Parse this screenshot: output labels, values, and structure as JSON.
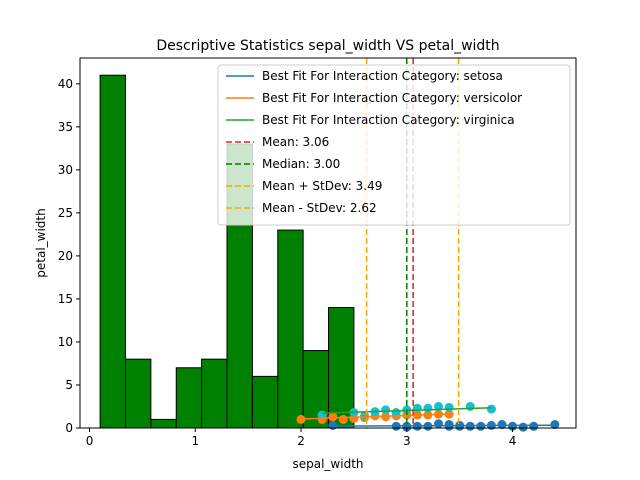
{
  "chart_data": {
    "type": "bar",
    "title": "Descriptive Statistics sepal_width VS petal_width",
    "xlabel": "sepal_width",
    "ylabel": "petal_width",
    "xlim": [
      -0.09,
      4.6
    ],
    "ylim": [
      0,
      43
    ],
    "xticks": [
      0,
      1,
      2,
      3,
      4
    ],
    "yticks": [
      0,
      5,
      10,
      15,
      20,
      25,
      30,
      35,
      40
    ],
    "histogram": {
      "color": "#008000",
      "edgecolor": "#000000",
      "bins": [
        {
          "x0": 0.1,
          "x1": 0.34,
          "count": 41
        },
        {
          "x0": 0.34,
          "x1": 0.58,
          "count": 8
        },
        {
          "x0": 0.58,
          "x1": 0.82,
          "count": 1
        },
        {
          "x0": 0.82,
          "x1": 1.06,
          "count": 7
        },
        {
          "x0": 1.06,
          "x1": 1.3,
          "count": 8
        },
        {
          "x0": 1.3,
          "x1": 1.54,
          "count": 33
        },
        {
          "x0": 1.54,
          "x1": 1.78,
          "count": 6
        },
        {
          "x0": 1.78,
          "x1": 2.02,
          "count": 23
        },
        {
          "x0": 2.02,
          "x1": 2.26,
          "count": 9
        },
        {
          "x0": 2.26,
          "x1": 2.5,
          "count": 14
        }
      ]
    },
    "scatter": [
      {
        "color": "#1f77b4",
        "points": [
          [
            2.3,
            0.3
          ],
          [
            2.9,
            0.2
          ],
          [
            3.0,
            0.1
          ],
          [
            3.0,
            0.2
          ],
          [
            3.1,
            0.2
          ],
          [
            3.2,
            0.2
          ],
          [
            3.3,
            0.5
          ],
          [
            3.4,
            0.2
          ],
          [
            3.4,
            0.4
          ],
          [
            3.5,
            0.2
          ],
          [
            3.5,
            0.3
          ],
          [
            3.6,
            0.2
          ],
          [
            3.7,
            0.2
          ],
          [
            3.8,
            0.3
          ],
          [
            3.9,
            0.4
          ],
          [
            4.0,
            0.2
          ],
          [
            4.1,
            0.1
          ],
          [
            4.2,
            0.2
          ],
          [
            4.4,
            0.4
          ]
        ]
      },
      {
        "color": "#ff7f0e",
        "points": [
          [
            2.0,
            1.0
          ],
          [
            2.2,
            1.0
          ],
          [
            2.3,
            1.3
          ],
          [
            2.4,
            1.0
          ],
          [
            2.5,
            1.1
          ],
          [
            2.6,
            1.2
          ],
          [
            2.7,
            1.4
          ],
          [
            2.8,
            1.3
          ],
          [
            2.9,
            1.4
          ],
          [
            3.0,
            1.5
          ],
          [
            3.1,
            1.5
          ],
          [
            3.2,
            1.5
          ],
          [
            3.3,
            1.6
          ],
          [
            3.4,
            1.6
          ]
        ]
      },
      {
        "color": "#17becf",
        "points": [
          [
            2.2,
            1.5
          ],
          [
            2.5,
            1.8
          ],
          [
            2.6,
            1.4
          ],
          [
            2.7,
            1.9
          ],
          [
            2.8,
            2.1
          ],
          [
            2.9,
            1.8
          ],
          [
            3.0,
            2.1
          ],
          [
            3.1,
            2.3
          ],
          [
            3.2,
            2.3
          ],
          [
            3.3,
            2.5
          ],
          [
            3.4,
            2.4
          ],
          [
            3.6,
            2.5
          ],
          [
            3.8,
            2.2
          ]
        ]
      }
    ],
    "series": [
      {
        "name": "Best Fit For Interaction Category: setosa",
        "color": "#1f77b4",
        "dash": "",
        "x": [
          2.3,
          4.4
        ],
        "y": [
          0.22,
          0.32
        ]
      },
      {
        "name": "Best Fit For Interaction Category: versicolor",
        "color": "#ff7f0e",
        "dash": "",
        "x": [
          2.0,
          3.4
        ],
        "y": [
          1.05,
          1.62
        ]
      },
      {
        "name": "Best Fit For Interaction Category: virginica",
        "color": "#2ca02c",
        "dash": "",
        "x": [
          2.2,
          3.8
        ],
        "y": [
          1.72,
          2.35
        ]
      }
    ],
    "vlines": [
      {
        "name": "Mean: 3.06",
        "color": "#d62728",
        "value": 3.06
      },
      {
        "name": "Median: 3.00",
        "color": "#008000",
        "value": 3.0
      },
      {
        "name": "Mean + StDev: 3.49",
        "color": "#ffa500",
        "value": 3.49
      },
      {
        "name": "Mean - StDev: 2.62",
        "color": "#ffa500",
        "value": 2.62
      }
    ],
    "grid": false,
    "legend_position": "top-right"
  }
}
